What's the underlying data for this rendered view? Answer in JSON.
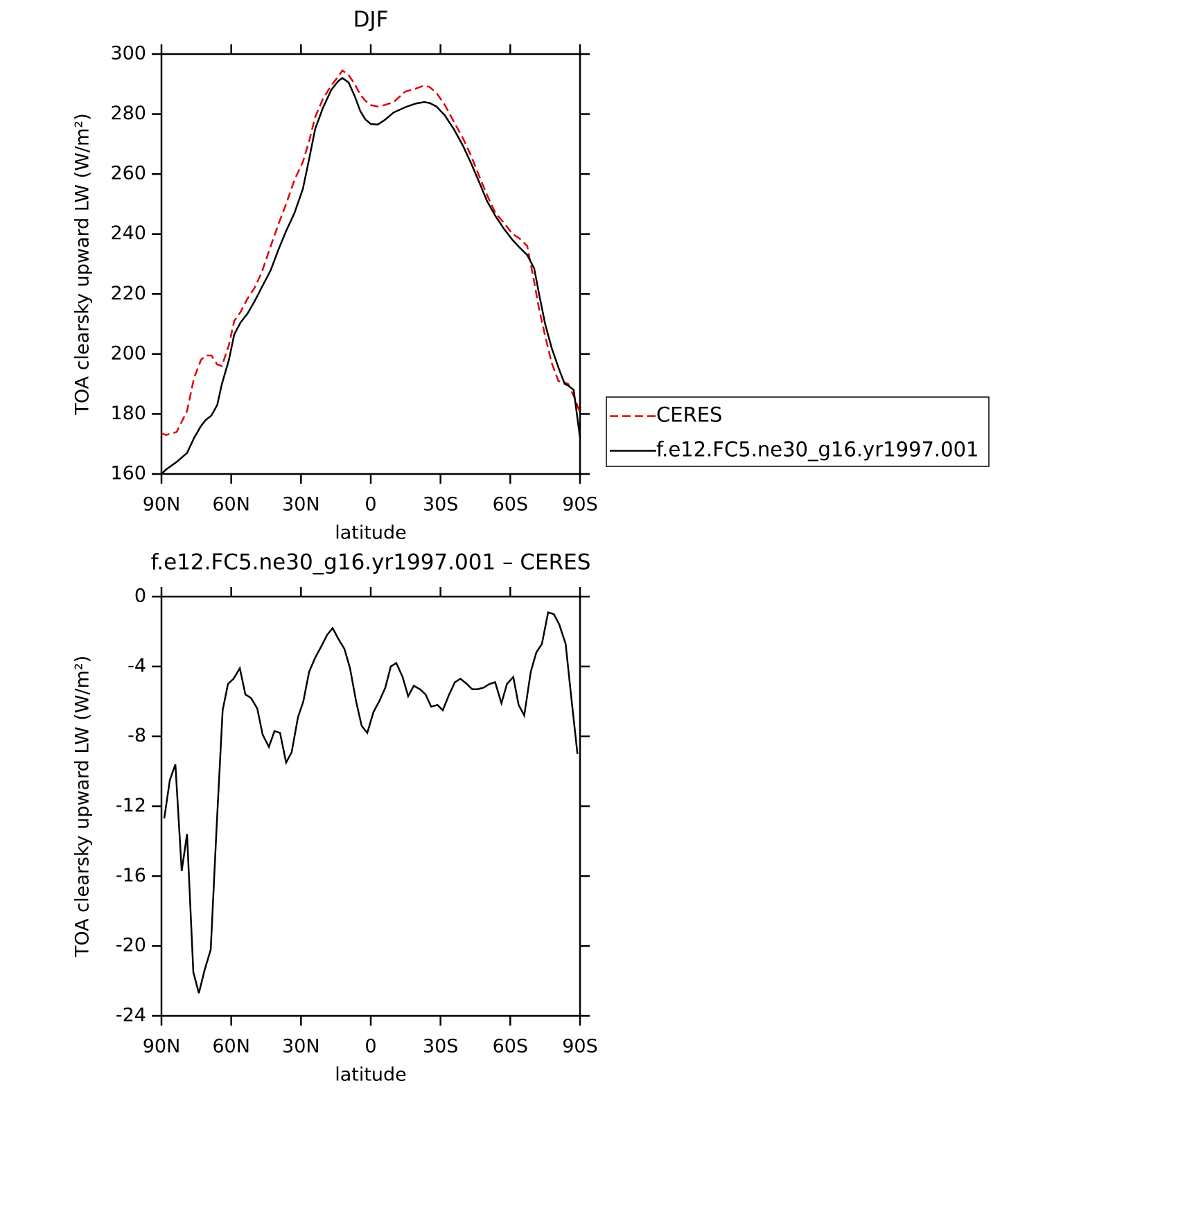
{
  "chart_data": [
    {
      "type": "line",
      "title": "DJF",
      "x_label": "latitude",
      "y_label": "TOA clearsky upward LW (W/m²)",
      "x": [
        90,
        88,
        83.5,
        79,
        76,
        73,
        71,
        68.5,
        66,
        64,
        61,
        58.7,
        56,
        53,
        50,
        47,
        43,
        39.6,
        36.4,
        32.8,
        29.2,
        26.5,
        23.9,
        20.6,
        17,
        14,
        12.2,
        9.5,
        6.9,
        4.5,
        2.4,
        0,
        -3,
        -6,
        -9.8,
        -14.9,
        -19.4,
        -23,
        -25.3,
        -28.3,
        -31.9,
        -35.7,
        -39.6,
        -43.2,
        -46.8,
        -50,
        -53.6,
        -57.5,
        -61,
        -64,
        -67.3,
        -70.3,
        -72.4,
        -75,
        -77.8,
        -80.7,
        -83.4,
        -84.9,
        -87.3,
        -90
      ],
      "series": [
        {
          "name": "CERES",
          "color": "#e00000",
          "dash": true,
          "values": [
            173.5,
            173,
            174,
            181,
            192,
            198,
            199.5,
            199.5,
            196.5,
            196,
            203,
            211,
            214,
            218.5,
            222,
            227,
            236,
            243.5,
            250,
            258,
            264,
            271,
            279,
            285,
            289.5,
            292.5,
            294.5,
            293,
            290,
            286.5,
            284.5,
            283,
            282.5,
            283,
            284,
            287.5,
            288.5,
            289.5,
            289,
            287,
            283,
            277.5,
            272,
            266,
            259,
            253,
            247,
            243.5,
            240,
            238.5,
            236,
            224,
            215,
            206,
            197,
            191,
            190.5,
            190,
            186,
            180.5
          ]
        },
        {
          "name": "f.e12.FC5.ne30_g16.yr1997.001",
          "color": "#000000",
          "dash": false,
          "values": [
            160,
            161.5,
            164,
            167,
            172,
            176,
            178,
            179.5,
            183,
            190,
            198,
            206.5,
            210.5,
            213.5,
            217.5,
            222,
            228,
            235,
            241,
            247,
            255,
            265,
            275,
            282,
            288,
            291,
            292,
            290.5,
            286,
            281,
            278.3,
            276.7,
            276.5,
            278,
            280.5,
            282.3,
            283.5,
            284,
            283.7,
            282.5,
            279.5,
            275,
            269.5,
            263.5,
            257,
            251,
            246,
            241.5,
            238,
            235.5,
            233,
            228.5,
            220,
            210,
            202,
            195.5,
            190,
            189.5,
            188,
            172
          ]
        }
      ],
      "xlim": [
        90,
        -90
      ],
      "xticks": [
        {
          "value": 90,
          "label": "90N"
        },
        {
          "value": 60,
          "label": "60N"
        },
        {
          "value": 30,
          "label": "30N"
        },
        0,
        {
          "value": -30,
          "label": "30S"
        },
        {
          "value": -60,
          "label": "60S"
        },
        {
          "value": -90,
          "label": "90S"
        }
      ],
      "ylim": [
        160,
        300
      ],
      "yticks": [
        160,
        180,
        200,
        220,
        240,
        260,
        280,
        300
      ],
      "legend": "right"
    },
    {
      "type": "line",
      "title": "f.e12.FC5.ne30_g16.yr1997.001 – CERES",
      "x_label": "latitude",
      "y_label": "TOA clearsky upward LW (W/m²)",
      "x": [
        88.8,
        86.4,
        84,
        81.3,
        79,
        76.3,
        73.9,
        71.5,
        68.8,
        66.4,
        63.7,
        61.4,
        59,
        56.3,
        53.9,
        51.5,
        48.8,
        46.5,
        43.8,
        41.4,
        39,
        36.4,
        34,
        31.3,
        29,
        26.5,
        23.9,
        21.5,
        18.8,
        16.4,
        14,
        11.3,
        8.9,
        6.3,
        3.9,
        1.5,
        -1.2,
        -3.6,
        -6.3,
        -8.6,
        -11,
        -13.7,
        -16.1,
        -18.5,
        -21.2,
        -23.6,
        -26,
        -28.7,
        -31,
        -33.7,
        -36.2,
        -38.6,
        -41.3,
        -43.6,
        -46,
        -48.7,
        -51.1,
        -53.5,
        -56.2,
        -58.6,
        -61.3,
        -63.6,
        -66,
        -68.8,
        -71.2,
        -73.6,
        -76.3,
        -78.7,
        -81.1,
        -83.8,
        -86.2,
        -88.9
      ],
      "series": [
        {
          "color": "#000000",
          "dash": false,
          "values": [
            -12.7,
            -10.5,
            -9.6,
            -15.7,
            -13.6,
            -21.5,
            -22.7,
            -21.4,
            -20.2,
            -13.5,
            -6.5,
            -5,
            -4.7,
            -4.1,
            -5.6,
            -5.8,
            -6.4,
            -7.9,
            -8.6,
            -7.7,
            -7.8,
            -9.5,
            -8.9,
            -6.9,
            -6,
            -4.3,
            -3.5,
            -2.9,
            -2.2,
            -1.8,
            -2.4,
            -3,
            -4.1,
            -6,
            -7.4,
            -7.8,
            -6.6,
            -6,
            -5.2,
            -4,
            -3.8,
            -4.6,
            -5.7,
            -5.1,
            -5.3,
            -5.6,
            -6.3,
            -6.2,
            -6.5,
            -5.6,
            -4.9,
            -4.7,
            -5,
            -5.3,
            -5.3,
            -5.2,
            -5,
            -4.9,
            -6.1,
            -5,
            -4.6,
            -6.2,
            -6.8,
            -4.3,
            -3.2,
            -2.7,
            -0.9,
            -1,
            -1.6,
            -2.7,
            -5.7,
            -9
          ]
        }
      ],
      "xlim": [
        90,
        -90
      ],
      "xticks": [
        {
          "value": 90,
          "label": "90N"
        },
        {
          "value": 60,
          "label": "60N"
        },
        {
          "value": 30,
          "label": "30N"
        },
        0,
        {
          "value": -30,
          "label": "30S"
        },
        {
          "value": -60,
          "label": "60S"
        },
        {
          "value": -90,
          "label": "90S"
        }
      ],
      "ylim": [
        -24,
        0
      ],
      "yticks": [
        -24,
        -20,
        -16,
        -12,
        -8,
        -4,
        0
      ]
    }
  ]
}
